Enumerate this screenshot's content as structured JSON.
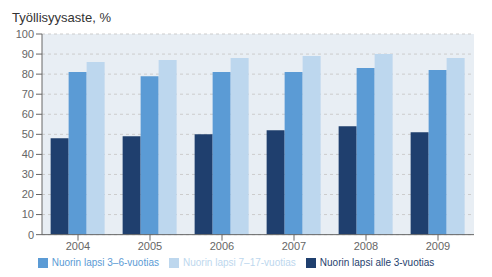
{
  "chart_data": {
    "type": "bar",
    "title": "Työllisyysaste, %",
    "categories": [
      "2004",
      "2005",
      "2006",
      "2007",
      "2008",
      "2009"
    ],
    "series": [
      {
        "name": "Nuorin lapsi alle 3-vuotias",
        "color": "#1F3F6E",
        "values": [
          48,
          49,
          50,
          52,
          54,
          51
        ]
      },
      {
        "name": "Nuorin lapsi 3–6-vuotias",
        "color": "#5B9BD5",
        "values": [
          81,
          79,
          81,
          81,
          83,
          82
        ]
      },
      {
        "name": "Nuorin lapsi 7–17-vuotias",
        "color": "#BDD7EE",
        "values": [
          86,
          87,
          88,
          89,
          90,
          88
        ]
      }
    ],
    "ylim": [
      0,
      100
    ],
    "yticks": [
      0,
      10,
      20,
      30,
      40,
      50,
      60,
      70,
      80,
      90,
      100
    ],
    "grid": true,
    "legend": "bottom"
  }
}
